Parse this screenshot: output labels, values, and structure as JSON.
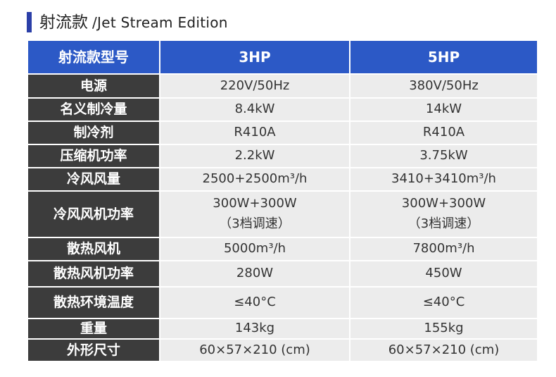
{
  "title": {
    "main": "射流款",
    "sub": "/Jet Stream Edition"
  },
  "table": {
    "header": [
      "射流款型号",
      "3HP",
      "5HP"
    ],
    "rows": [
      [
        "电源",
        "220V/50Hz",
        "380V/50Hz"
      ],
      [
        "名义制冷量",
        "8.4kW",
        "14kW"
      ],
      [
        "制冷剂",
        "R410A",
        "R410A"
      ],
      [
        "压缩机功率",
        "2.2kW",
        "3.75kW"
      ],
      [
        "冷风风量",
        "2500+2500m³/h",
        "3410+3410m³/h"
      ],
      [
        "冷风风机功率",
        [
          "300W+300W",
          "（3档调速）"
        ],
        [
          "300W+300W",
          "（3档调速）"
        ]
      ],
      [
        "散热风机",
        "5000m³/h",
        "7800m³/h"
      ],
      [
        "散热风机功率",
        "280W",
        "450W"
      ],
      [
        "散热环境温度",
        "≤40°C",
        "≤40°C"
      ],
      [
        "重量",
        "143kg",
        "155kg"
      ],
      [
        "外形尺寸",
        "60×57×210 (cm)",
        "60×57×210 (cm)"
      ]
    ]
  }
}
